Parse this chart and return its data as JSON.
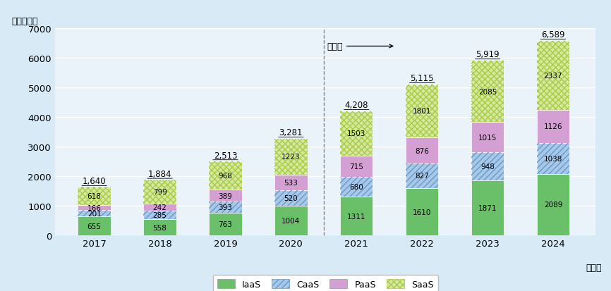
{
  "years": [
    "2017",
    "2018",
    "2019",
    "2020",
    "2021",
    "2022",
    "2023",
    "2024"
  ],
  "IaaS": [
    655,
    558,
    763,
    1004,
    1311,
    1610,
    1871,
    2089
  ],
  "CaaS": [
    201,
    285,
    393,
    520,
    680,
    827,
    948,
    1038
  ],
  "PaaS": [
    166,
    242,
    389,
    533,
    715,
    876,
    1015,
    1126
  ],
  "SaaS": [
    618,
    799,
    968,
    1223,
    1503,
    1801,
    2085,
    2337
  ],
  "totals": [
    1640,
    1884,
    2513,
    3281,
    4208,
    5115,
    5919,
    6589
  ],
  "color_IaaS": "#6abf69",
  "color_CaaS": "#a8c8e8",
  "color_PaaS": "#d4a0d4",
  "color_SaaS": "#d4e8a0",
  "bg_color": "#d8eaf5",
  "plot_bg_color": "#eaf2fa",
  "ylabel": "（億ドル）",
  "year_suffix": "（年）",
  "forecast_label": "予測値",
  "ylim": [
    0,
    7000
  ],
  "yticks": [
    0,
    1000,
    2000,
    3000,
    4000,
    5000,
    6000,
    7000
  ],
  "legend_labels": [
    "IaaS",
    "CaaS",
    "PaaS",
    "SaaS"
  ]
}
